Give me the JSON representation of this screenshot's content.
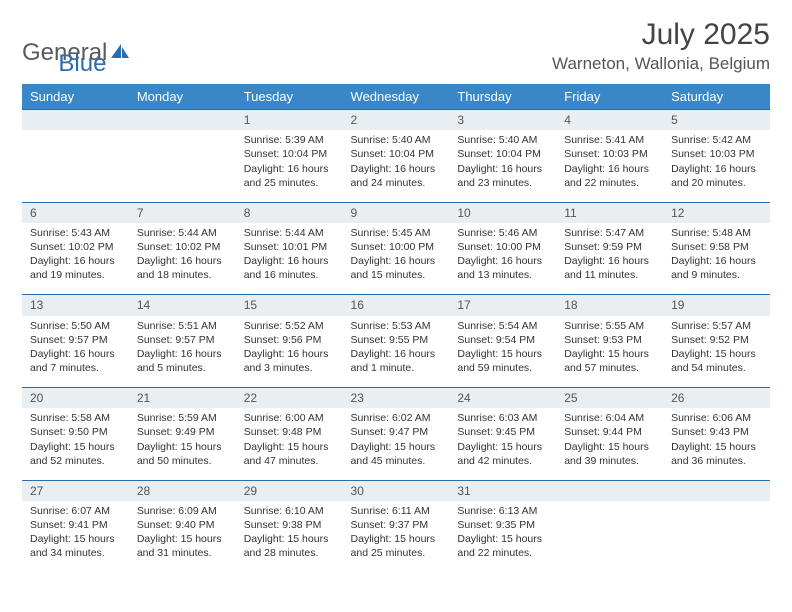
{
  "logo": {
    "text1": "General",
    "text2": "Blue"
  },
  "title": "July 2025",
  "location": "Warneton, Wallonia, Belgium",
  "colors": {
    "header_bg": "#3a87c8",
    "header_text": "#ffffff",
    "daynum_bg": "#e9eef2",
    "border": "#2a6cb0",
    "logo_blue": "#2a6cb0",
    "body_text": "#333333"
  },
  "weekdays": [
    "Sunday",
    "Monday",
    "Tuesday",
    "Wednesday",
    "Thursday",
    "Friday",
    "Saturday"
  ],
  "weeks": [
    [
      null,
      null,
      {
        "n": "1",
        "sr": "5:39 AM",
        "ss": "10:04 PM",
        "dl": "16 hours and 25 minutes."
      },
      {
        "n": "2",
        "sr": "5:40 AM",
        "ss": "10:04 PM",
        "dl": "16 hours and 24 minutes."
      },
      {
        "n": "3",
        "sr": "5:40 AM",
        "ss": "10:04 PM",
        "dl": "16 hours and 23 minutes."
      },
      {
        "n": "4",
        "sr": "5:41 AM",
        "ss": "10:03 PM",
        "dl": "16 hours and 22 minutes."
      },
      {
        "n": "5",
        "sr": "5:42 AM",
        "ss": "10:03 PM",
        "dl": "16 hours and 20 minutes."
      }
    ],
    [
      {
        "n": "6",
        "sr": "5:43 AM",
        "ss": "10:02 PM",
        "dl": "16 hours and 19 minutes."
      },
      {
        "n": "7",
        "sr": "5:44 AM",
        "ss": "10:02 PM",
        "dl": "16 hours and 18 minutes."
      },
      {
        "n": "8",
        "sr": "5:44 AM",
        "ss": "10:01 PM",
        "dl": "16 hours and 16 minutes."
      },
      {
        "n": "9",
        "sr": "5:45 AM",
        "ss": "10:00 PM",
        "dl": "16 hours and 15 minutes."
      },
      {
        "n": "10",
        "sr": "5:46 AM",
        "ss": "10:00 PM",
        "dl": "16 hours and 13 minutes."
      },
      {
        "n": "11",
        "sr": "5:47 AM",
        "ss": "9:59 PM",
        "dl": "16 hours and 11 minutes."
      },
      {
        "n": "12",
        "sr": "5:48 AM",
        "ss": "9:58 PM",
        "dl": "16 hours and 9 minutes."
      }
    ],
    [
      {
        "n": "13",
        "sr": "5:50 AM",
        "ss": "9:57 PM",
        "dl": "16 hours and 7 minutes."
      },
      {
        "n": "14",
        "sr": "5:51 AM",
        "ss": "9:57 PM",
        "dl": "16 hours and 5 minutes."
      },
      {
        "n": "15",
        "sr": "5:52 AM",
        "ss": "9:56 PM",
        "dl": "16 hours and 3 minutes."
      },
      {
        "n": "16",
        "sr": "5:53 AM",
        "ss": "9:55 PM",
        "dl": "16 hours and 1 minute."
      },
      {
        "n": "17",
        "sr": "5:54 AM",
        "ss": "9:54 PM",
        "dl": "15 hours and 59 minutes."
      },
      {
        "n": "18",
        "sr": "5:55 AM",
        "ss": "9:53 PM",
        "dl": "15 hours and 57 minutes."
      },
      {
        "n": "19",
        "sr": "5:57 AM",
        "ss": "9:52 PM",
        "dl": "15 hours and 54 minutes."
      }
    ],
    [
      {
        "n": "20",
        "sr": "5:58 AM",
        "ss": "9:50 PM",
        "dl": "15 hours and 52 minutes."
      },
      {
        "n": "21",
        "sr": "5:59 AM",
        "ss": "9:49 PM",
        "dl": "15 hours and 50 minutes."
      },
      {
        "n": "22",
        "sr": "6:00 AM",
        "ss": "9:48 PM",
        "dl": "15 hours and 47 minutes."
      },
      {
        "n": "23",
        "sr": "6:02 AM",
        "ss": "9:47 PM",
        "dl": "15 hours and 45 minutes."
      },
      {
        "n": "24",
        "sr": "6:03 AM",
        "ss": "9:45 PM",
        "dl": "15 hours and 42 minutes."
      },
      {
        "n": "25",
        "sr": "6:04 AM",
        "ss": "9:44 PM",
        "dl": "15 hours and 39 minutes."
      },
      {
        "n": "26",
        "sr": "6:06 AM",
        "ss": "9:43 PM",
        "dl": "15 hours and 36 minutes."
      }
    ],
    [
      {
        "n": "27",
        "sr": "6:07 AM",
        "ss": "9:41 PM",
        "dl": "15 hours and 34 minutes."
      },
      {
        "n": "28",
        "sr": "6:09 AM",
        "ss": "9:40 PM",
        "dl": "15 hours and 31 minutes."
      },
      {
        "n": "29",
        "sr": "6:10 AM",
        "ss": "9:38 PM",
        "dl": "15 hours and 28 minutes."
      },
      {
        "n": "30",
        "sr": "6:11 AM",
        "ss": "9:37 PM",
        "dl": "15 hours and 25 minutes."
      },
      {
        "n": "31",
        "sr": "6:13 AM",
        "ss": "9:35 PM",
        "dl": "15 hours and 22 minutes."
      },
      null,
      null
    ]
  ],
  "labels": {
    "sunrise": "Sunrise:",
    "sunset": "Sunset:",
    "daylight": "Daylight:"
  }
}
